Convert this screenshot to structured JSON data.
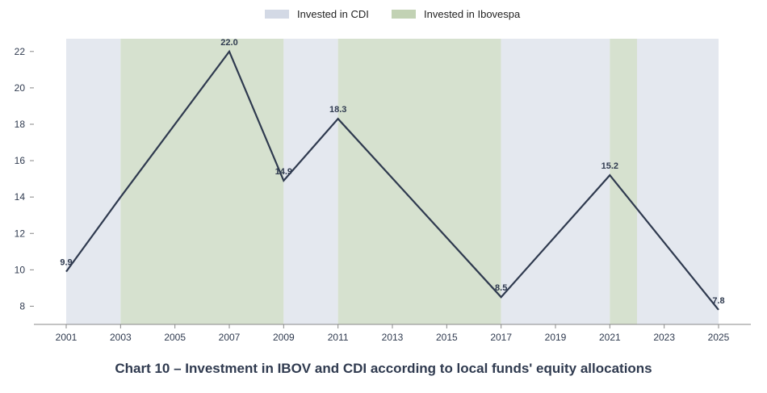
{
  "caption": "Chart 10 – Investment in IBOV and CDI according to local funds' equity allocations",
  "legend": [
    {
      "label": "Invested in CDI",
      "color": "#d3d9e5"
    },
    {
      "label": "Invested in Ibovespa",
      "color": "#c2d2b4"
    }
  ],
  "colors": {
    "line": "#2f3a4f",
    "cdi_band": "#e4e8ef",
    "ibov_band": "#d6e1cf",
    "axis": "#888888"
  },
  "chart_data": {
    "type": "line",
    "title": "",
    "xlabel": "",
    "ylabel": "",
    "x": [
      2001,
      2003,
      2007,
      2009,
      2011,
      2017,
      2021,
      2025
    ],
    "values": [
      9.9,
      14.0,
      22.0,
      14.9,
      18.3,
      8.5,
      15.2,
      7.8
    ],
    "point_labels": [
      {
        "x": 2001,
        "label": "9.9"
      },
      {
        "x": 2007,
        "label": "22.0"
      },
      {
        "x": 2009,
        "label": "14.9"
      },
      {
        "x": 2011,
        "label": "18.3"
      },
      {
        "x": 2017,
        "label": "8.5"
      },
      {
        "x": 2021,
        "label": "15.2"
      },
      {
        "x": 2025,
        "label": "7.8"
      }
    ],
    "bands": [
      {
        "start": 2001,
        "end": 2003,
        "kind": "cdi"
      },
      {
        "start": 2003,
        "end": 2009,
        "kind": "ibov"
      },
      {
        "start": 2009,
        "end": 2011,
        "kind": "cdi"
      },
      {
        "start": 2011,
        "end": 2017,
        "kind": "ibov"
      },
      {
        "start": 2017,
        "end": 2021,
        "kind": "cdi"
      },
      {
        "start": 2021,
        "end": 2022,
        "kind": "ibov"
      },
      {
        "start": 2022,
        "end": 2025,
        "kind": "cdi"
      }
    ],
    "xlim": [
      2001,
      2025
    ],
    "ylim": [
      7.0,
      22.7
    ],
    "x_ticks": [
      "2001",
      "2003",
      "2005",
      "2007",
      "2009",
      "2011",
      "2013",
      "2015",
      "2017",
      "2019",
      "2021",
      "2023",
      "2025"
    ],
    "y_ticks": [
      "8",
      "10",
      "12",
      "14",
      "16",
      "18",
      "20",
      "22"
    ],
    "grid": false,
    "legend_position": "top-center"
  }
}
